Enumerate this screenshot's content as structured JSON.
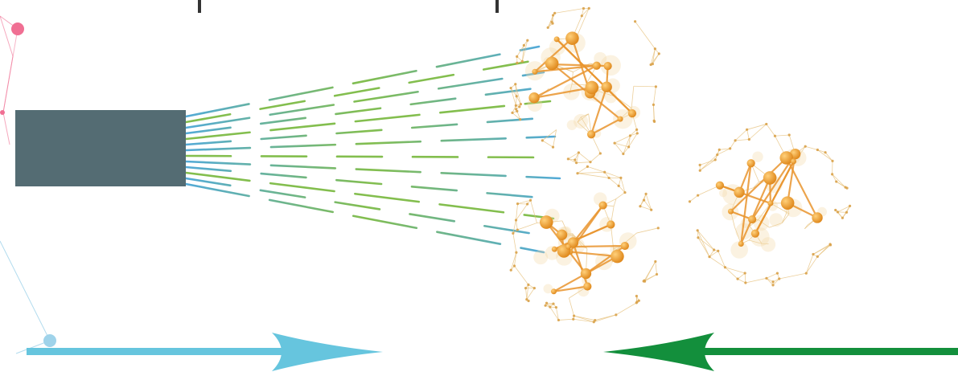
{
  "diagram": {
    "colors": {
      "source_block": "#546c73",
      "beam_blue": "#4aa6d6",
      "beam_green": "#7dbb45",
      "cluster_node": "#e08a1e",
      "cluster_edge": "#e6c07a",
      "left_arrow": "#66c5de",
      "right_arrow": "#138f3c",
      "network_pink": "#f06f93",
      "network_blue": "#9fd3ea"
    },
    "elements": {
      "source": "source-block",
      "beams": "beam-lines",
      "clusters": [
        "cluster-top",
        "cluster-bottom",
        "cluster-right"
      ],
      "arrows": [
        "arrow-right-pointing",
        "arrow-left-pointing"
      ]
    }
  }
}
